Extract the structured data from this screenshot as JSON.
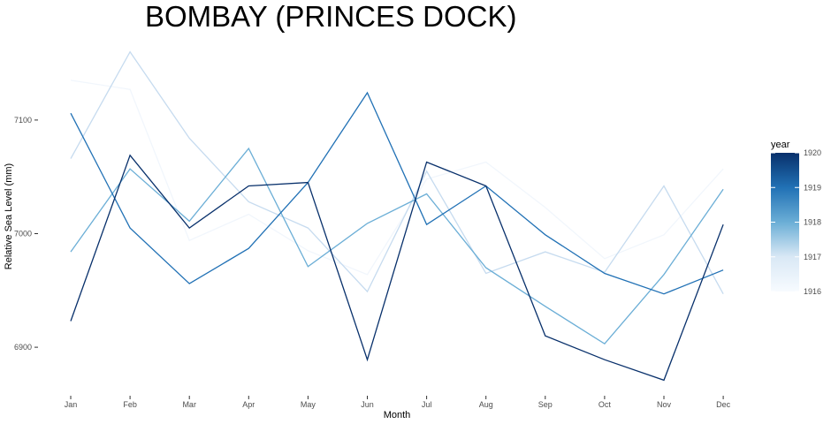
{
  "chart_data": {
    "type": "line",
    "title": "BOMBAY (PRINCES DOCK)",
    "xlabel": "Month",
    "ylabel": "Relative Sea Level (mm)",
    "categories": [
      "Jan",
      "Feb",
      "Mar",
      "Apr",
      "May",
      "Jun",
      "Jul",
      "Aug",
      "Sep",
      "Oct",
      "Nov",
      "Dec"
    ],
    "yticks": [
      6900,
      7000,
      7100
    ],
    "ylim": [
      6865,
      7175
    ],
    "grid": false,
    "legend": {
      "title": "year",
      "type": "continuous-colorbar",
      "placement": "right",
      "ticks": [
        1916,
        1917,
        1918,
        1919,
        1920
      ],
      "range": [
        1916,
        1920
      ],
      "color_low": "#f7fbff",
      "color_high": "#08306b"
    },
    "series": [
      {
        "year": 1916,
        "color": "#f1f6fc",
        "values": [
          7135,
          7127,
          6994,
          7017,
          6985,
          6964,
          7048,
          7063,
          7023,
          6978,
          6999,
          7057
        ]
      },
      {
        "year": 1917,
        "color": "#c6dbef",
        "values": [
          7066,
          7160,
          7084,
          7028,
          7005,
          6949,
          7055,
          6965,
          6984,
          6966,
          7042,
          6947
        ]
      },
      {
        "year": 1918,
        "color": "#6baed6",
        "values": [
          6984,
          7057,
          7011,
          7075,
          6971,
          7009,
          7035,
          6970,
          6936,
          6903,
          6964,
          7039
        ]
      },
      {
        "year": 1919,
        "color": "#2171b5",
        "values": [
          7106,
          7005,
          6956,
          6987,
          7045,
          7124,
          7008,
          7042,
          6999,
          6965,
          6947,
          6968
        ]
      },
      {
        "year": 1920,
        "color": "#08306b",
        "values": [
          6923,
          7069,
          7005,
          7042,
          7045,
          6889,
          7063,
          7042,
          6910,
          6889,
          6871,
          7008
        ]
      }
    ]
  }
}
